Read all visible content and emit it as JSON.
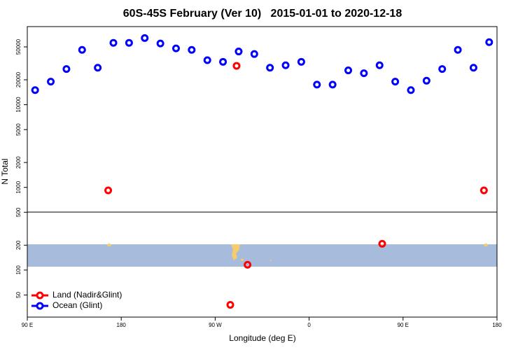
{
  "chart_data": {
    "type": "scatter",
    "title": "60S-45S February (Ver 10)   2015-01-01 to 2020-12-18",
    "x_label": "Longitude (deg E)",
    "y_label": "N Total",
    "xlim": [
      90,
      540
    ],
    "xticks": [
      {
        "value": 90,
        "label": "90 E"
      },
      180,
      {
        "value": 270,
        "label": "90 W"
      },
      {
        "value": 360,
        "label": "0"
      },
      {
        "value": 450,
        "label": "90 E"
      },
      {
        "value": 540,
        "label": "180"
      }
    ],
    "ylim": [
      27,
      88000
    ],
    "log_y": true,
    "yticks": [
      50,
      100,
      200,
      500,
      1000,
      2000,
      5000,
      10000,
      20000,
      50000
    ],
    "legend": "bottom-left",
    "series": [
      {
        "name": "Land (Nadir&Glint)",
        "color": "#ff0000",
        "x": [
          167.5,
          290.5,
          527.5,
          430,
          301,
          284.5
        ],
        "values": [
          920,
          29500,
          920,
          208,
          116,
          38
        ]
      },
      {
        "name": "Ocean (Glint)",
        "color": "#0000ff",
        "x": [
          97.5,
          112.5,
          127.5,
          142.5,
          157.5,
          172.5,
          187.5,
          202.5,
          217.5,
          232.5,
          247.5,
          262.5,
          277.5,
          292.5,
          307.5,
          322.5,
          337.5,
          352.5,
          367.5,
          382.5,
          397.5,
          412.5,
          427.5,
          442.5,
          457.5,
          472.5,
          487.5,
          502.5,
          517.5,
          532.5
        ],
        "values": [
          15000,
          19000,
          27000,
          46000,
          28000,
          56000,
          56000,
          64000,
          55000,
          48000,
          46000,
          34500,
          33000,
          44000,
          41000,
          28000,
          30000,
          33000,
          17500,
          17500,
          26000,
          24000,
          30000,
          19000,
          15000,
          19500,
          27000,
          46000,
          28000,
          57000
        ]
      }
    ]
  }
}
